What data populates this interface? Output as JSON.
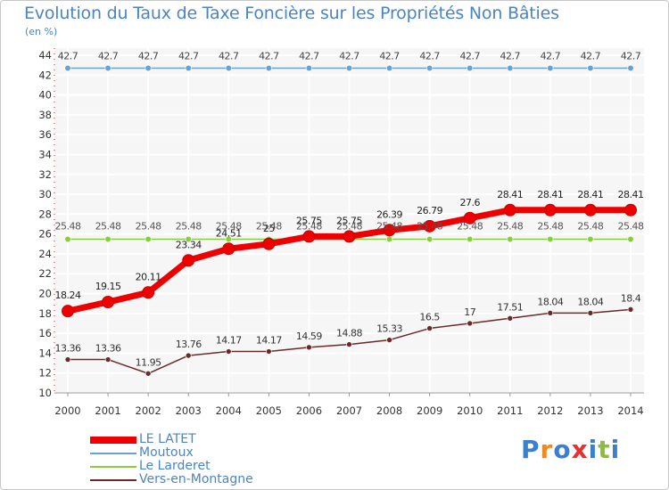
{
  "title": "Evolution du Taux de Taxe Foncière sur les Propriétés Non Bâties",
  "unit_label": "(en %)",
  "logo": {
    "text": "Proxiti",
    "colors": [
      "#3a7fd0",
      "#f08a20",
      "#3a7fd0",
      "#e83030",
      "#3a7fd0",
      "#8abf3a",
      "#3a7fd0"
    ]
  },
  "chart_data": {
    "type": "line",
    "title": "Evolution du Taux de Taxe Foncière sur les Propriétés Non Bâties",
    "ylabel": "(en %)",
    "xlabel": "",
    "categories": [
      "2000",
      "2001",
      "2002",
      "2003",
      "2004",
      "2005",
      "2006",
      "2007",
      "2008",
      "2009",
      "2010",
      "2011",
      "2012",
      "2013",
      "2014"
    ],
    "ylim": [
      10,
      44
    ],
    "yticks": [
      10,
      12,
      14,
      16,
      18,
      20,
      22,
      24,
      26,
      28,
      30,
      32,
      34,
      36,
      38,
      40,
      42,
      44
    ],
    "grid": true,
    "legend_position": "bottom-left",
    "series": [
      {
        "name": "LE LATET",
        "color": "#ee0000",
        "values": [
          18.24,
          19.15,
          20.11,
          23.34,
          24.51,
          25,
          25.75,
          25.75,
          26.39,
          26.79,
          27.6,
          28.41,
          28.41,
          28.41,
          28.41
        ],
        "labels": [
          "18.24",
          "19.15",
          "20.11",
          "23.34",
          "24.51",
          "25",
          "25.75",
          "25.75",
          "26.39",
          "26.79",
          "27.6",
          "28.41",
          "28.41",
          "28.41",
          "28.41"
        ]
      },
      {
        "name": "Moutoux",
        "color": "#6aa1cf",
        "values": [
          42.7,
          42.7,
          42.7,
          42.7,
          42.7,
          42.7,
          42.7,
          42.7,
          42.7,
          42.7,
          42.7,
          42.7,
          42.7,
          42.7,
          42.7
        ],
        "labels": [
          "42.7",
          "42.7",
          "42.7",
          "42.7",
          "42.7",
          "42.7",
          "42.7",
          "42.7",
          "42.7",
          "42.7",
          "42.7",
          "42.7",
          "42.7",
          "42.7",
          "42.7"
        ]
      },
      {
        "name": "Le Larderet",
        "color": "#88cc44",
        "values": [
          25.48,
          25.48,
          25.48,
          25.48,
          25.48,
          25.48,
          25.48,
          25.48,
          25.48,
          25.48,
          25.48,
          25.48,
          25.48,
          25.48,
          25.48
        ],
        "labels": [
          "25.48",
          "25.48",
          "25.48",
          "25.48",
          "25.48",
          "25.48",
          "25.48",
          "25.48",
          "25.48",
          "25.48",
          "25.48",
          "25.48",
          "25.48",
          "25.48",
          "25.48"
        ]
      },
      {
        "name": "Vers-en-Montagne",
        "color": "#6b2a2a",
        "values": [
          13.36,
          13.36,
          11.95,
          13.76,
          14.17,
          14.17,
          14.59,
          14.88,
          15.33,
          16.5,
          17,
          17.51,
          18.04,
          18.04,
          18.4
        ],
        "labels": [
          "13.36",
          "13.36",
          "11.95",
          "13.76",
          "14.17",
          "14.17",
          "14.59",
          "14.88",
          "15.33",
          "16.5",
          "17",
          "17.51",
          "18.04",
          "18.04",
          "18.4"
        ]
      }
    ]
  }
}
